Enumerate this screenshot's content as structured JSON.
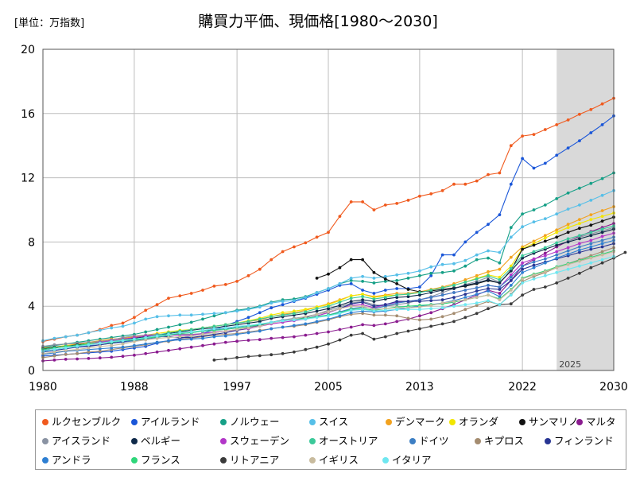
{
  "unit_label": "[単位：万指数]",
  "chart_data": {
    "type": "line",
    "title": "購買力平価、現価格[1980～2030]",
    "xlabel": "",
    "ylabel": "",
    "xlim": [
      1980,
      2030
    ],
    "ylim": [
      0,
      20
    ],
    "x_ticks": [
      "1980",
      "1988",
      "1997",
      "2005",
      "2013",
      "2022",
      "2030"
    ],
    "y_ticks": [
      "0",
      "4",
      "8",
      "12",
      "16",
      "20"
    ],
    "grid": true,
    "legend_position": "bottom",
    "forecast_shade": {
      "from": 2025,
      "to": 2030,
      "label": "2025"
    },
    "series": [
      {
        "name": "ルクセンブルク",
        "color": "#f05a1e",
        "start": 1980,
        "values": [
          1.8,
          1.95,
          2.1,
          2.2,
          2.35,
          2.55,
          2.8,
          2.95,
          3.3,
          3.75,
          4.1,
          4.5,
          4.65,
          4.8,
          5.0,
          5.25,
          5.35,
          5.55,
          5.9,
          6.3,
          6.9,
          7.4,
          7.7,
          7.95,
          8.3,
          8.6,
          9.6,
          10.5,
          10.5,
          10.0,
          10.3,
          10.4,
          10.6,
          10.85,
          11.0,
          11.2,
          11.6,
          11.6,
          11.8,
          12.2,
          12.3,
          14.0,
          14.6,
          14.7,
          15.0,
          15.3,
          15.6,
          15.95,
          16.25,
          16.6,
          16.95
        ]
      },
      {
        "name": "アイルランド",
        "color": "#1a56d8",
        "start": 1980,
        "values": [
          0.9,
          0.95,
          1.0,
          1.05,
          1.1,
          1.15,
          1.2,
          1.3,
          1.4,
          1.5,
          1.7,
          1.85,
          2.0,
          2.15,
          2.3,
          2.55,
          2.8,
          3.05,
          3.3,
          3.6,
          3.9,
          4.1,
          4.3,
          4.5,
          4.75,
          5.0,
          5.3,
          5.4,
          5.0,
          4.8,
          5.0,
          5.1,
          5.1,
          5.2,
          5.9,
          7.2,
          7.2,
          8.0,
          8.6,
          9.1,
          9.7,
          11.6,
          13.2,
          12.6,
          12.9,
          13.4,
          13.85,
          14.3,
          14.8,
          15.3,
          15.85
        ]
      },
      {
        "name": "ノルウェー",
        "color": "#16a087",
        "start": 1980,
        "values": [
          1.45,
          1.55,
          1.65,
          1.75,
          1.85,
          1.95,
          2.05,
          2.15,
          2.25,
          2.4,
          2.55,
          2.7,
          2.85,
          3.0,
          3.2,
          3.4,
          3.6,
          3.75,
          3.85,
          4.0,
          4.25,
          4.4,
          4.45,
          4.6,
          4.85,
          5.1,
          5.4,
          5.6,
          5.55,
          5.45,
          5.55,
          5.6,
          5.75,
          5.9,
          6.05,
          6.1,
          6.2,
          6.5,
          6.9,
          7.0,
          6.7,
          8.9,
          9.75,
          10.0,
          10.3,
          10.7,
          11.05,
          11.35,
          11.65,
          11.95,
          12.3
        ]
      },
      {
        "name": "スイス",
        "color": "#56bfe8",
        "start": 1980,
        "values": [
          1.85,
          2.0,
          2.1,
          2.2,
          2.35,
          2.5,
          2.65,
          2.75,
          2.95,
          3.2,
          3.35,
          3.4,
          3.45,
          3.45,
          3.5,
          3.55,
          3.6,
          3.7,
          3.8,
          3.95,
          4.2,
          4.3,
          4.35,
          4.55,
          4.85,
          5.1,
          5.4,
          5.75,
          5.85,
          5.75,
          5.85,
          5.95,
          6.05,
          6.2,
          6.45,
          6.6,
          6.65,
          6.85,
          7.2,
          7.45,
          7.35,
          8.3,
          8.95,
          9.25,
          9.45,
          9.75,
          10.05,
          10.3,
          10.6,
          10.9,
          11.2
        ]
      },
      {
        "name": "デンマーク",
        "color": "#f2a21e",
        "start": 1980,
        "values": [
          1.35,
          1.45,
          1.55,
          1.65,
          1.75,
          1.85,
          1.95,
          2.0,
          2.1,
          2.2,
          2.3,
          2.4,
          2.45,
          2.55,
          2.65,
          2.75,
          2.85,
          2.95,
          3.05,
          3.15,
          3.35,
          3.5,
          3.6,
          3.75,
          3.95,
          4.15,
          4.4,
          4.65,
          4.75,
          4.6,
          4.7,
          4.8,
          4.8,
          4.9,
          5.05,
          5.2,
          5.4,
          5.65,
          5.9,
          6.15,
          6.3,
          7.05,
          7.7,
          8.05,
          8.4,
          8.75,
          9.1,
          9.4,
          9.7,
          9.95,
          10.2
        ]
      },
      {
        "name": "オランダ",
        "color": "#f2e600",
        "start": 1980,
        "values": [
          1.4,
          1.45,
          1.55,
          1.6,
          1.7,
          1.8,
          1.85,
          1.95,
          2.05,
          2.15,
          2.3,
          2.4,
          2.5,
          2.55,
          2.65,
          2.75,
          2.85,
          2.95,
          3.1,
          3.25,
          3.45,
          3.6,
          3.7,
          3.8,
          3.95,
          4.1,
          4.35,
          4.65,
          4.75,
          4.55,
          4.65,
          4.7,
          4.75,
          4.85,
          5.0,
          5.15,
          5.3,
          5.5,
          5.75,
          5.95,
          5.8,
          6.5,
          7.6,
          7.9,
          8.25,
          8.6,
          8.9,
          9.15,
          9.4,
          9.6,
          9.8
        ]
      },
      {
        "name": "サンマリノ",
        "color": "#111111",
        "start": 2004,
        "values": [
          5.75,
          6.0,
          6.4,
          6.9,
          6.9,
          6.1,
          5.7,
          5.4,
          5.05,
          4.9,
          4.95,
          5.05,
          5.15,
          5.25,
          5.4,
          5.6,
          5.45,
          6.25,
          7.55,
          7.8,
          8.05,
          8.3,
          8.6,
          8.85,
          9.05,
          9.3,
          9.55
        ]
      },
      {
        "name": "マルタ",
        "color": "#8a1b8f",
        "start": 1980,
        "values": [
          0.6,
          0.65,
          0.7,
          0.72,
          0.75,
          0.78,
          0.82,
          0.88,
          0.95,
          1.05,
          1.15,
          1.25,
          1.35,
          1.45,
          1.55,
          1.65,
          1.75,
          1.82,
          1.88,
          1.92,
          2.0,
          2.05,
          2.1,
          2.2,
          2.3,
          2.4,
          2.55,
          2.7,
          2.85,
          2.8,
          2.9,
          3.05,
          3.2,
          3.4,
          3.6,
          3.85,
          4.1,
          4.4,
          4.7,
          5.0,
          4.8,
          5.6,
          6.5,
          6.9,
          7.3,
          7.7,
          8.05,
          8.35,
          8.65,
          8.9,
          9.15
        ]
      },
      {
        "name": "アイスランド",
        "color": "#8a93a3",
        "start": 1980,
        "values": [
          1.5,
          1.6,
          1.65,
          1.7,
          1.75,
          1.8,
          1.9,
          2.05,
          2.15,
          2.2,
          2.25,
          2.25,
          2.25,
          2.25,
          2.3,
          2.35,
          2.45,
          2.55,
          2.7,
          2.85,
          3.0,
          3.15,
          3.25,
          3.35,
          3.5,
          3.75,
          3.95,
          4.2,
          4.3,
          4.1,
          4.0,
          4.1,
          4.2,
          4.4,
          4.6,
          4.85,
          5.1,
          5.35,
          5.55,
          5.8,
          5.5,
          6.2,
          7.0,
          7.3,
          7.55,
          7.8,
          8.05,
          8.3,
          8.5,
          8.7,
          8.9
        ]
      },
      {
        "name": "ベルギー",
        "color": "#0f2a4a",
        "start": 1980,
        "values": [
          1.35,
          1.45,
          1.5,
          1.6,
          1.65,
          1.75,
          1.8,
          1.9,
          2.0,
          2.1,
          2.2,
          2.3,
          2.4,
          2.5,
          2.6,
          2.65,
          2.75,
          2.85,
          2.95,
          3.05,
          3.25,
          3.35,
          3.45,
          3.55,
          3.7,
          3.85,
          4.05,
          4.3,
          4.4,
          4.3,
          4.45,
          4.55,
          4.6,
          4.7,
          4.85,
          5.0,
          5.1,
          5.3,
          5.45,
          5.65,
          5.45,
          6.2,
          7.0,
          7.3,
          7.55,
          7.8,
          8.0,
          8.2,
          8.4,
          8.6,
          8.8
        ]
      },
      {
        "name": "スウェーデン",
        "color": "#b236c8",
        "start": 1980,
        "values": [
          1.3,
          1.4,
          1.5,
          1.55,
          1.65,
          1.75,
          1.85,
          1.95,
          2.05,
          2.15,
          2.2,
          2.2,
          2.2,
          2.2,
          2.3,
          2.4,
          2.45,
          2.5,
          2.6,
          2.75,
          2.9,
          3.0,
          3.1,
          3.2,
          3.4,
          3.6,
          3.85,
          4.05,
          4.1,
          3.9,
          4.1,
          4.25,
          4.3,
          4.4,
          4.55,
          4.7,
          4.85,
          5.0,
          5.15,
          5.3,
          5.2,
          5.95,
          6.7,
          6.95,
          7.15,
          7.4,
          7.65,
          7.9,
          8.1,
          8.35,
          8.55
        ]
      },
      {
        "name": "オーストリア",
        "color": "#3cc99a",
        "start": 1980,
        "values": [
          1.3,
          1.4,
          1.5,
          1.55,
          1.65,
          1.7,
          1.8,
          1.9,
          1.95,
          2.05,
          2.2,
          2.35,
          2.45,
          2.55,
          2.65,
          2.75,
          2.85,
          2.95,
          3.05,
          3.2,
          3.35,
          3.45,
          3.55,
          3.65,
          3.85,
          4.0,
          4.25,
          4.5,
          4.6,
          4.45,
          4.55,
          4.7,
          4.75,
          4.85,
          5.0,
          5.15,
          5.3,
          5.5,
          5.7,
          5.9,
          5.65,
          6.35,
          7.15,
          7.4,
          7.65,
          7.95,
          8.2,
          8.4,
          8.6,
          8.8,
          9.0
        ]
      },
      {
        "name": "ドイツ",
        "color": "#3d7fc4",
        "start": 1980,
        "values": [
          1.25,
          1.3,
          1.4,
          1.45,
          1.55,
          1.6,
          1.7,
          1.75,
          1.85,
          1.95,
          2.05,
          2.2,
          2.3,
          2.35,
          2.45,
          2.55,
          2.6,
          2.7,
          2.75,
          2.85,
          3.0,
          3.1,
          3.15,
          3.2,
          3.35,
          3.45,
          3.65,
          3.85,
          3.95,
          3.85,
          4.0,
          4.2,
          4.3,
          4.4,
          4.55,
          4.7,
          4.85,
          5.0,
          5.15,
          5.3,
          5.2,
          5.8,
          6.5,
          6.75,
          6.95,
          7.2,
          7.45,
          7.7,
          7.9,
          8.1,
          8.3
        ]
      },
      {
        "name": "キプロス",
        "color": "#a48c70",
        "start": 1980,
        "values": [
          0.8,
          0.9,
          1.0,
          1.05,
          1.15,
          1.2,
          1.3,
          1.4,
          1.5,
          1.6,
          1.75,
          1.8,
          1.95,
          2.0,
          2.1,
          2.2,
          2.25,
          2.3,
          2.4,
          2.5,
          2.6,
          2.7,
          2.75,
          2.85,
          3.0,
          3.15,
          3.35,
          3.5,
          3.55,
          3.45,
          3.45,
          3.4,
          3.25,
          3.15,
          3.2,
          3.35,
          3.55,
          3.8,
          4.05,
          4.3,
          4.1,
          4.75,
          5.55,
          5.85,
          6.1,
          6.4,
          6.65,
          6.9,
          7.15,
          7.4,
          7.65
        ]
      },
      {
        "name": "フィンランド",
        "color": "#283593",
        "start": 1980,
        "values": [
          1.15,
          1.25,
          1.35,
          1.45,
          1.5,
          1.6,
          1.7,
          1.8,
          1.9,
          2.05,
          2.15,
          2.1,
          2.05,
          2.05,
          2.15,
          2.25,
          2.35,
          2.5,
          2.65,
          2.8,
          3.0,
          3.1,
          3.2,
          3.3,
          3.5,
          3.65,
          3.85,
          4.15,
          4.25,
          4.0,
          4.1,
          4.3,
          4.3,
          4.3,
          4.35,
          4.4,
          4.55,
          4.75,
          4.95,
          5.1,
          5.05,
          5.6,
          6.3,
          6.55,
          6.75,
          6.95,
          7.15,
          7.35,
          7.55,
          7.7,
          7.9
        ]
      },
      {
        "name": "アンドラ",
        "color": "#2e7fd2",
        "start": 1980,
        "values": [
          1.0,
          1.1,
          1.2,
          1.25,
          1.3,
          1.35,
          1.4,
          1.45,
          1.55,
          1.65,
          1.75,
          1.85,
          1.9,
          1.95,
          2.0,
          2.1,
          2.15,
          2.25,
          2.35,
          2.45,
          2.6,
          2.7,
          2.8,
          2.9,
          3.05,
          3.2,
          3.4,
          3.6,
          3.7,
          3.65,
          3.7,
          3.8,
          3.9,
          4.0,
          4.1,
          4.2,
          4.35,
          4.55,
          4.75,
          4.95,
          4.6,
          5.3,
          6.1,
          6.4,
          6.7,
          7.0,
          7.25,
          7.5,
          7.7,
          7.9,
          8.1
        ]
      },
      {
        "name": "フランス",
        "color": "#2fd67a",
        "start": 1980,
        "values": [
          1.3,
          1.4,
          1.5,
          1.55,
          1.65,
          1.7,
          1.75,
          1.85,
          1.9,
          2.0,
          2.1,
          2.2,
          2.3,
          2.35,
          2.45,
          2.5,
          2.55,
          2.65,
          2.75,
          2.85,
          3.0,
          3.1,
          3.2,
          3.25,
          3.35,
          3.45,
          3.6,
          3.8,
          3.85,
          3.75,
          3.85,
          3.95,
          4.0,
          4.05,
          4.1,
          4.15,
          4.25,
          4.4,
          4.55,
          4.7,
          4.45,
          5.05,
          5.75,
          6.0,
          6.2,
          6.45,
          6.65,
          6.85,
          7.05,
          7.25,
          7.45
        ]
      },
      {
        "name": "リトアニア",
        "color": "#3a3a3a",
        "start": 1995,
        "values": [
          0.65,
          0.72,
          0.8,
          0.87,
          0.92,
          0.98,
          1.05,
          1.15,
          1.3,
          1.45,
          1.65,
          1.9,
          2.2,
          2.3,
          1.95,
          2.1,
          2.3,
          2.45,
          2.6,
          2.75,
          2.9,
          3.05,
          3.3,
          3.55,
          3.85,
          4.1,
          4.15,
          4.7,
          5.05,
          5.2,
          5.45,
          5.75,
          6.05,
          6.4,
          6.7,
          7.0,
          7.35
        ]
      },
      {
        "name": "イギリス",
        "color": "#c8bb9e",
        "start": 1980,
        "values": [
          1.05,
          1.15,
          1.25,
          1.3,
          1.4,
          1.5,
          1.55,
          1.65,
          1.8,
          1.9,
          2.0,
          2.05,
          2.1,
          2.15,
          2.25,
          2.35,
          2.45,
          2.55,
          2.65,
          2.75,
          2.95,
          3.1,
          3.2,
          3.35,
          3.5,
          3.65,
          3.85,
          4.0,
          4.0,
          3.8,
          3.85,
          3.9,
          3.9,
          3.95,
          4.05,
          4.2,
          4.3,
          4.4,
          4.55,
          4.7,
          4.4,
          5.0,
          5.7,
          5.95,
          6.15,
          6.4,
          6.6,
          6.8,
          7.0,
          7.2,
          7.4
        ]
      },
      {
        "name": "イタリア",
        "color": "#6fe7f0",
        "start": 1980,
        "values": [
          1.2,
          1.3,
          1.4,
          1.5,
          1.6,
          1.7,
          1.8,
          1.85,
          1.95,
          2.05,
          2.15,
          2.25,
          2.35,
          2.4,
          2.5,
          2.6,
          2.65,
          2.75,
          2.8,
          2.9,
          3.0,
          3.1,
          3.15,
          3.2,
          3.3,
          3.4,
          3.55,
          3.75,
          3.8,
          3.7,
          3.75,
          3.8,
          3.8,
          3.8,
          3.85,
          3.9,
          4.0,
          4.1,
          4.2,
          4.35,
          4.1,
          4.7,
          5.45,
          5.7,
          5.9,
          6.1,
          6.3,
          6.5,
          6.7,
          6.9,
          7.1
        ]
      }
    ]
  }
}
